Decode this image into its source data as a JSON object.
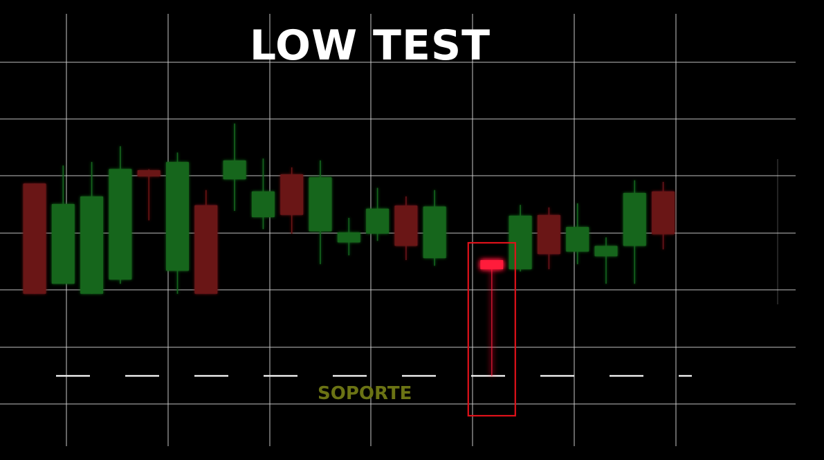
{
  "title": "LOW TEST",
  "support_label": "SOPORTE",
  "colors": {
    "background": "#000000",
    "grid": "#cfcfcf",
    "bull": "#15661a",
    "bear": "#6a1219",
    "highlight_candle": "#ff1a3a",
    "highlight_box": "#e0111a",
    "support_line": "#e8e8e8",
    "support_label": "#6b7314"
  },
  "chart_data": {
    "type": "candlestick",
    "title": "LOW TEST",
    "grid": true,
    "ylim": [
      0,
      100
    ],
    "annotations": [
      {
        "kind": "support_line",
        "label": "SOPORTE",
        "y": 13.3,
        "style": "dashed"
      },
      {
        "kind": "highlight_box",
        "candle_index": 16
      }
    ],
    "candles": [
      {
        "open": 74.3,
        "close": 39.3,
        "high": 74.3,
        "low": 39.3
      },
      {
        "open": 42.5,
        "close": 67.8,
        "high": 80.0,
        "low": 42.5
      },
      {
        "open": 39.3,
        "close": 70.2,
        "high": 81.1,
        "low": 39.3
      },
      {
        "open": 43.8,
        "close": 78.9,
        "high": 86.1,
        "low": 42.5
      },
      {
        "open": 78.5,
        "close": 76.5,
        "high": 78.8,
        "low": 62.6
      },
      {
        "open": 46.6,
        "close": 81.1,
        "high": 84.1,
        "low": 39.3
      },
      {
        "open": 67.4,
        "close": 39.3,
        "high": 72.2,
        "low": 39.3
      },
      {
        "open": 75.6,
        "close": 81.6,
        "high": 93.3,
        "low": 65.6
      },
      {
        "open": 63.6,
        "close": 71.8,
        "high": 82.2,
        "low": 59.8
      },
      {
        "open": 77.2,
        "close": 64.3,
        "high": 79.4,
        "low": 58.4
      },
      {
        "open": 59.1,
        "close": 76.3,
        "high": 81.6,
        "low": 48.7
      },
      {
        "open": 55.6,
        "close": 58.8,
        "high": 63.4,
        "low": 51.5
      },
      {
        "open": 58.4,
        "close": 66.3,
        "high": 72.9,
        "low": 56.1
      },
      {
        "open": 67.3,
        "close": 54.5,
        "high": 70.2,
        "low": 50.0
      },
      {
        "open": 50.6,
        "close": 67.0,
        "high": 72.2,
        "low": 48.2
      },
      {
        "open": null,
        "close": null,
        "high": null,
        "low": null,
        "hidden": true
      },
      {
        "open": 50.0,
        "close": 47.1,
        "high": 50.0,
        "low": 13.3,
        "highlight": true
      },
      {
        "open": 47.1,
        "close": 64.1,
        "high": 67.5,
        "low": 46.4
      },
      {
        "open": 64.3,
        "close": 51.9,
        "high": 66.7,
        "low": 47.1
      },
      {
        "open": 52.7,
        "close": 60.5,
        "high": 68.0,
        "low": 48.7
      },
      {
        "open": 51.2,
        "close": 54.5,
        "high": 57.2,
        "low": 42.5
      },
      {
        "open": 54.5,
        "close": 71.3,
        "high": 75.3,
        "low": 42.5
      },
      {
        "open": 71.8,
        "close": 58.2,
        "high": 74.8,
        "low": 53.4
      }
    ]
  }
}
